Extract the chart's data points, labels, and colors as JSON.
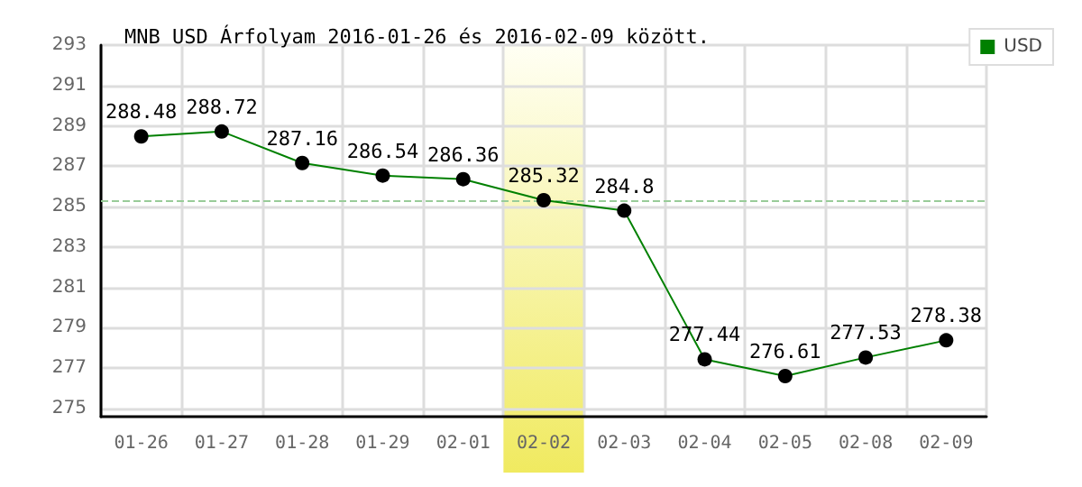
{
  "chart_data": {
    "type": "line",
    "title": "MNB USD Árfolyam 2016-01-26 és 2016-02-09 között.",
    "categories": [
      "01-26",
      "01-27",
      "01-28",
      "01-29",
      "02-01",
      "02-02",
      "02-03",
      "02-04",
      "02-05",
      "02-08",
      "02-09"
    ],
    "series": [
      {
        "name": "USD",
        "color": "#008000",
        "values": [
          288.48,
          288.72,
          287.16,
          286.54,
          286.36,
          285.32,
          284.8,
          277.44,
          276.61,
          277.53,
          278.38
        ]
      }
    ],
    "ylim": [
      274.6,
      293
    ],
    "yticks": [
      275,
      277,
      279,
      281,
      283,
      285,
      287,
      289,
      291,
      293
    ],
    "ref_lines": [
      {
        "axis": "y",
        "value": 285.32,
        "color": "#99cc99",
        "line_style": "dashed"
      }
    ],
    "bands": [
      {
        "axis": "x",
        "from": "02-02",
        "to": "02-02",
        "color": "#f0ea60"
      }
    ],
    "data_labels": true,
    "grid": true,
    "legend": "top right",
    "marker": "circle",
    "line_style": "solid"
  }
}
